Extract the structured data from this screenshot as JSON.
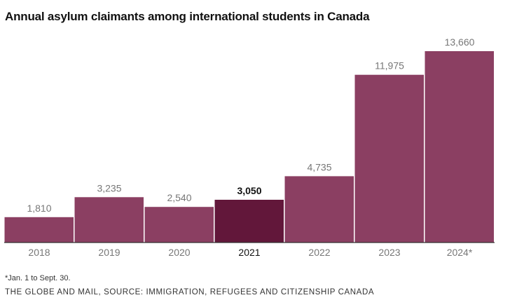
{
  "title": "Annual asylum claimants among international students in Canada",
  "footnote": "*Jan. 1 to Sept. 30.",
  "source": "THE GLOBE AND MAIL, SOURCE: IMMIGRATION, REFUGEES AND CITIZENSHIP CANADA",
  "colors": {
    "bar": "#8b3f62",
    "highlight": "#62173a",
    "axis": "#333333"
  },
  "chart_data": {
    "type": "bar",
    "title": "Annual asylum claimants among international students in Canada",
    "xlabel": "",
    "ylabel": "",
    "grid": false,
    "categories": [
      "2018",
      "2019",
      "2020",
      "2021",
      "2022",
      "2023",
      "2024*"
    ],
    "values": [
      1810,
      3235,
      2540,
      3050,
      4735,
      11975,
      13660
    ],
    "value_labels": [
      "1,810",
      "3,235",
      "2,540",
      "3,050",
      "4,735",
      "11,975",
      "13,660"
    ],
    "highlight": "2021",
    "ylim": [
      0,
      13660
    ]
  }
}
